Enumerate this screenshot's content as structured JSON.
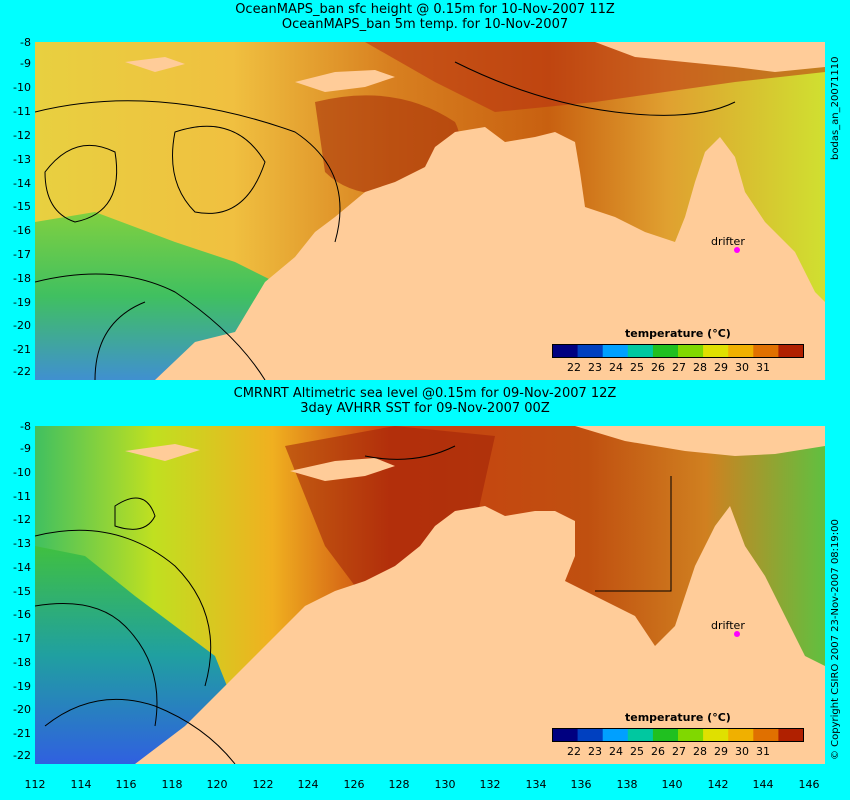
{
  "panels": [
    {
      "title_line1": "OceanMAPS_ban sfc height @ 0.15m for 10-Nov-2007 11Z",
      "title_line2": "OceanMAPS_ban 5m temp. for 10-Nov-2007",
      "side_label": "bodas_an_20071110",
      "drifter_label": "drifter",
      "legend_title": "temperature (°C)"
    },
    {
      "title_line1": "CMRNRT Altimetric sea level  @0.15m  for 09-Nov-2007 12Z",
      "title_line2": "3day AVHRR SST for 09-Nov-2007 00Z",
      "side_label": "© Copyright CSIRO 2007    23-Nov-2007 08:19:00",
      "drifter_label": "drifter",
      "legend_title": "temperature (°C)"
    }
  ],
  "y_ticks": [
    "-8",
    "-9",
    "-10",
    "-11",
    "-12",
    "-13",
    "-14",
    "-15",
    "-16",
    "-17",
    "-18",
    "-19",
    "-20",
    "-21",
    "-22"
  ],
  "x_ticks": [
    "112",
    "114",
    "116",
    "118",
    "120",
    "122",
    "124",
    "126",
    "128",
    "130",
    "132",
    "134",
    "136",
    "138",
    "140",
    "142",
    "144",
    "146"
  ],
  "legend_ticks": [
    "22",
    "23",
    "24",
    "25",
    "26",
    "27",
    "28",
    "29",
    "30",
    "31"
  ],
  "legend_colors": [
    "#000080",
    "#0040c0",
    "#00a0ff",
    "#00c8a0",
    "#20c020",
    "#80d800",
    "#e0e000",
    "#f0b000",
    "#e07000",
    "#b02000"
  ],
  "colors": {
    "background": "#00ffff",
    "land": "#ffcc99",
    "drifter": "#ff00ff"
  }
}
